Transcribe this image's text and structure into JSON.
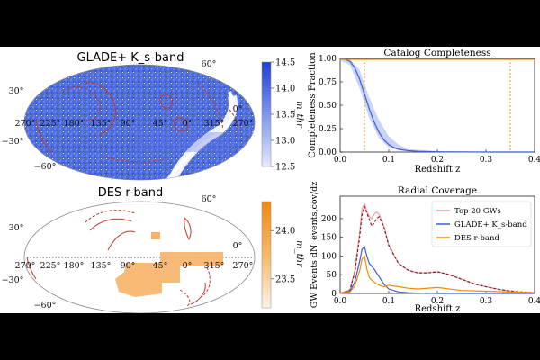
{
  "chart_data": [
    {
      "type": "heatmap",
      "title": "GLADE+ K_s-band",
      "projection": "mollweide",
      "lon_ticks": [
        "270°",
        "225°",
        "180°",
        "135°",
        "90°",
        "45°",
        "0°",
        "315°",
        "270°"
      ],
      "lat_ticks": [
        "60°",
        "30°",
        "0°",
        "−30°",
        "−60°"
      ],
      "colorbar": {
        "label": "m_thr",
        "ticks": [
          12.5,
          13.0,
          13.5,
          14.0,
          14.5
        ],
        "range": [
          12.5,
          14.5
        ],
        "colormap": "blues"
      },
      "contour_color": "#c0392b"
    },
    {
      "type": "heatmap",
      "title": "DES r-band",
      "projection": "mollweide",
      "lon_ticks": [
        "270°",
        "225°",
        "180°",
        "135°",
        "90°",
        "45°",
        "0°",
        "315°",
        "270°"
      ],
      "lat_ticks": [
        "60°",
        "30°",
        "0°",
        "−30°",
        "−60°"
      ],
      "colorbar": {
        "label": "m_thr",
        "ticks": [
          23.5,
          24.0
        ],
        "range": [
          23.2,
          24.3
        ],
        "colormap": "oranges"
      },
      "contour_color": "#c0392b"
    },
    {
      "type": "line",
      "title": "Catalog Completeness",
      "xlabel": "Redshift z",
      "ylabel": "Completeness Fraction",
      "xlim": [
        0,
        0.4
      ],
      "ylim": [
        0,
        1.0
      ],
      "xticks": [
        0.0,
        0.1,
        0.2,
        0.3,
        0.4
      ],
      "yticks": [
        0.0,
        0.25,
        0.5,
        0.75,
        1.0
      ],
      "series": [
        {
          "color": "#3b5bdb",
          "x": [
            0,
            0.01,
            0.02,
            0.03,
            0.04,
            0.05,
            0.06,
            0.07,
            0.08,
            0.09,
            0.1,
            0.11,
            0.12,
            0.14,
            0.16,
            0.2,
            0.3,
            0.4
          ],
          "y": [
            1.0,
            0.99,
            0.97,
            0.9,
            0.78,
            0.62,
            0.46,
            0.32,
            0.21,
            0.13,
            0.08,
            0.05,
            0.03,
            0.015,
            0.008,
            0.003,
            0.0,
            0.0
          ]
        },
        {
          "color": "#f08c00",
          "x": [
            0,
            0.1,
            0.2,
            0.3,
            0.4
          ],
          "y": [
            0.99,
            0.99,
            0.99,
            0.99,
            0.99
          ]
        }
      ],
      "band": {
        "x": [
          0,
          0.02,
          0.04,
          0.06,
          0.08,
          0.1,
          0.12,
          0.14,
          0.2
        ],
        "lower": [
          0.98,
          0.93,
          0.68,
          0.36,
          0.15,
          0.05,
          0.02,
          0.005,
          0.0
        ],
        "upper": [
          1.0,
          0.99,
          0.88,
          0.58,
          0.34,
          0.17,
          0.08,
          0.03,
          0.01
        ]
      },
      "vlines": [
        {
          "x": 0.05,
          "color": "#f08c00"
        },
        {
          "x": 0.35,
          "color": "#f08c00"
        }
      ]
    },
    {
      "type": "line",
      "title": "Radial Coverage",
      "xlabel": "Redshift z",
      "ylabel": "GW Events dN_events,cov/dz",
      "xlim": [
        0,
        0.4
      ],
      "ylim": [
        0,
        260
      ],
      "xticks": [
        0.0,
        0.1,
        0.2,
        0.3,
        0.4
      ],
      "yticks": [
        0,
        50,
        100,
        150,
        200
      ],
      "legend_position": "top-right",
      "series": [
        {
          "name": "Top 20 GWs",
          "color": "#e8a0a0",
          "style": "solid",
          "x": [
            0,
            0.02,
            0.03,
            0.04,
            0.045,
            0.05,
            0.055,
            0.06,
            0.065,
            0.07,
            0.075,
            0.08,
            0.09,
            0.1,
            0.12,
            0.14,
            0.16,
            0.18,
            0.2,
            0.22,
            0.25,
            0.28,
            0.3,
            0.33,
            0.36,
            0.4
          ],
          "y": [
            0,
            10,
            60,
            160,
            225,
            240,
            220,
            205,
            200,
            212,
            218,
            212,
            180,
            130,
            80,
            62,
            55,
            55,
            58,
            52,
            38,
            24,
            18,
            10,
            5,
            2
          ]
        },
        {
          "name": "Top 20 GWs (dashed)",
          "color": "#8b1a2b",
          "style": "dashed",
          "x": [
            0,
            0.02,
            0.03,
            0.04,
            0.045,
            0.05,
            0.055,
            0.06,
            0.065,
            0.07,
            0.075,
            0.08,
            0.09,
            0.1,
            0.12,
            0.14,
            0.16,
            0.18,
            0.2,
            0.22,
            0.25,
            0.28,
            0.3,
            0.33,
            0.36,
            0.4
          ],
          "y": [
            0,
            8,
            55,
            150,
            210,
            232,
            215,
            198,
            180,
            188,
            200,
            205,
            178,
            128,
            80,
            62,
            55,
            55,
            58,
            52,
            38,
            24,
            18,
            10,
            5,
            2
          ]
        },
        {
          "name": "GLADE+ K_s-band",
          "color": "#3b5bdb",
          "style": "solid",
          "x": [
            0,
            0.02,
            0.03,
            0.04,
            0.045,
            0.05,
            0.055,
            0.06,
            0.07,
            0.08,
            0.09,
            0.1,
            0.12,
            0.14,
            0.16,
            0.2,
            0.3,
            0.4
          ],
          "y": [
            0,
            6,
            30,
            85,
            118,
            125,
            100,
            80,
            65,
            45,
            25,
            12,
            4,
            2,
            1,
            0,
            0,
            0
          ]
        },
        {
          "name": "DES r-band",
          "color": "#f08c00",
          "style": "solid",
          "x": [
            0,
            0.02,
            0.03,
            0.04,
            0.045,
            0.05,
            0.055,
            0.06,
            0.07,
            0.08,
            0.09,
            0.1,
            0.12,
            0.14,
            0.16,
            0.2,
            0.25,
            0.3,
            0.35,
            0.4
          ],
          "y": [
            0,
            4,
            20,
            60,
            92,
            100,
            65,
            42,
            30,
            22,
            18,
            22,
            18,
            14,
            12,
            16,
            8,
            6,
            4,
            2
          ]
        }
      ]
    }
  ]
}
